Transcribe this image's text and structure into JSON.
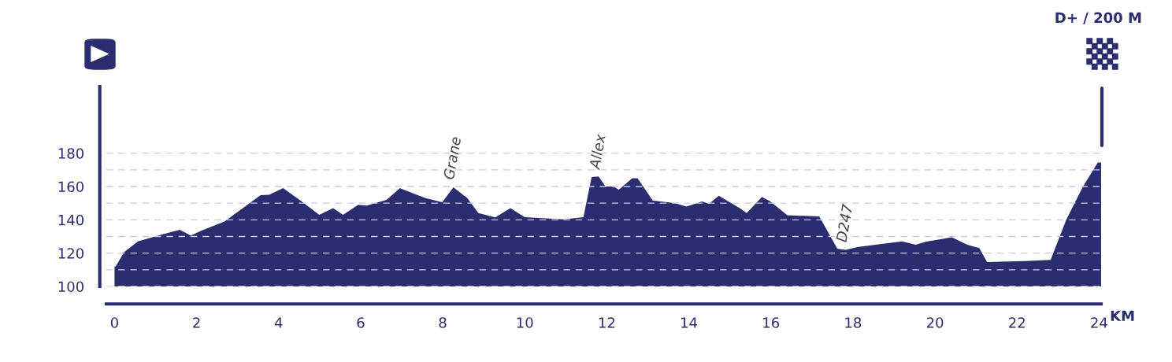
{
  "chart_data": {
    "type": "area",
    "xlabel": "KM",
    "x": [
      0,
      0.03,
      0.23,
      0.57,
      1.12,
      1.59,
      1.86,
      2.07,
      2.68,
      3.56,
      3.77,
      4.11,
      4.51,
      4.99,
      5.33,
      5.57,
      5.94,
      6.15,
      6.63,
      6.96,
      7.58,
      7.99,
      8.26,
      8.6,
      8.87,
      9.28,
      9.65,
      10.0,
      10.95,
      11.43,
      11.63,
      11.8,
      11.97,
      12.17,
      12.29,
      12.62,
      12.75,
      13.12,
      13.67,
      13.94,
      14.32,
      14.49,
      14.73,
      15.24,
      15.41,
      15.78,
      15.98,
      16.4,
      17.18,
      17.62,
      17.82,
      18.13,
      19.2,
      19.53,
      19.77,
      20.41,
      20.79,
      21.08,
      21.27,
      22.19,
      22.82,
      23.2,
      23.6,
      23.97,
      24.05
    ],
    "series": [
      {
        "color": "#2b2d6e",
        "values": [
          112,
          112,
          120.6,
          127,
          131,
          134,
          130.6,
          133,
          139,
          154.8,
          155,
          159,
          152,
          143,
          147,
          143,
          149,
          148.6,
          152,
          159,
          153,
          150.6,
          159.5,
          153,
          144,
          141.5,
          147,
          141.6,
          140.3,
          141.6,
          165.7,
          166,
          160,
          160,
          158,
          165,
          165,
          151.6,
          150,
          148,
          151,
          149.6,
          154.5,
          147,
          144,
          153.7,
          151.2,
          142.8,
          142,
          122.7,
          122,
          123.7,
          127,
          125,
          126.8,
          129.5,
          125,
          123,
          114.7,
          115.2,
          115.9,
          140,
          159.6,
          174.4,
          174.4
        ]
      }
    ],
    "xlim": [
      -0.2,
      24.05
    ],
    "xticks": [
      0,
      2,
      4,
      6,
      8,
      10,
      12,
      14,
      16,
      18,
      20,
      22,
      24
    ],
    "ylim": [
      100,
      220
    ],
    "yticks": [
      100,
      {
        "value": 110,
        "label": null
      },
      120,
      {
        "value": 130,
        "label": null
      },
      140,
      {
        "value": 150,
        "label": null
      },
      160,
      {
        "value": 170,
        "label": null
      },
      180
    ],
    "grid": "y",
    "annotations": [
      {
        "text": "Grane",
        "x": 8.26,
        "y": 159.5
      },
      {
        "text": "Allex",
        "x": 11.8,
        "y": 166
      },
      {
        "text": "D247",
        "x": 17.82,
        "y": 122
      },
      "D+ / 200 M"
    ]
  }
}
